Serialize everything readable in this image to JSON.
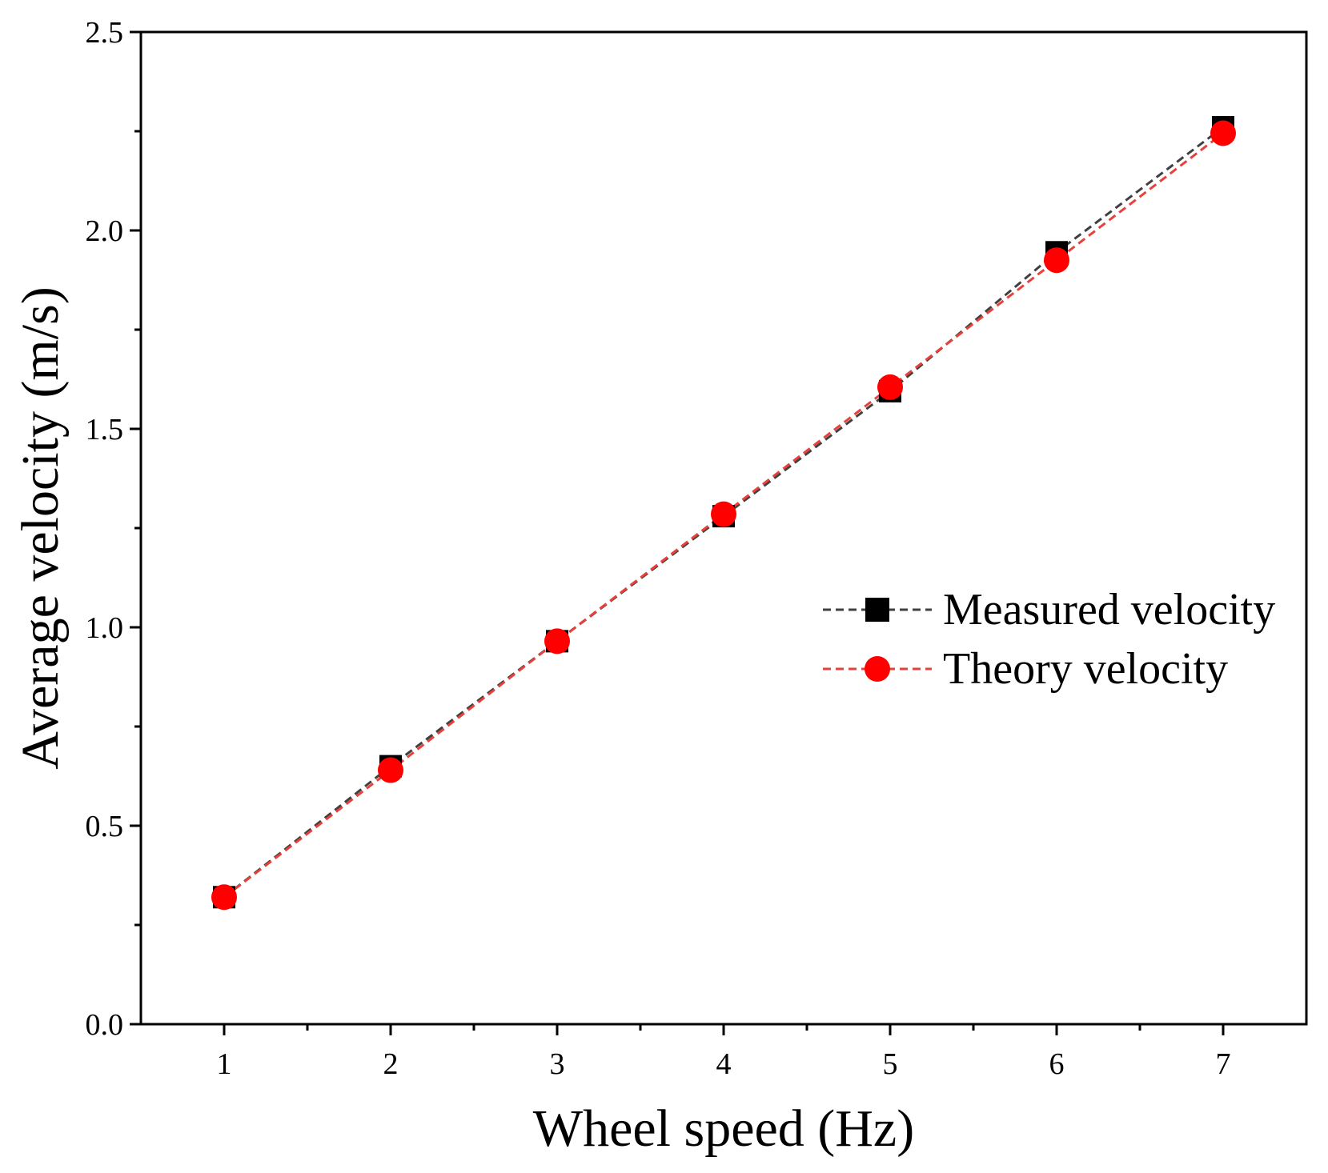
{
  "chart_data": {
    "type": "line",
    "xlabel": "Wheel speed (Hz)",
    "ylabel": "Average velocity (m/s)",
    "xlim": [
      0.5,
      7.5
    ],
    "ylim": [
      0,
      2.5
    ],
    "x_ticks": [
      1,
      2,
      3,
      4,
      5,
      6,
      7
    ],
    "x_tick_labels": [
      "1",
      "2",
      "3",
      "4",
      "5",
      "6",
      "7"
    ],
    "y_ticks": [
      0,
      0.5,
      1.0,
      1.5,
      2.0,
      2.5
    ],
    "y_tick_labels": [
      "0.0",
      "0.5",
      "1.0",
      "1.5",
      "2.0",
      "2.5"
    ],
    "grid": false,
    "legend_position": "right-middle",
    "x": [
      1,
      2,
      3,
      4,
      5,
      6,
      7
    ],
    "series": [
      {
        "name": "Measured velocity",
        "values": [
          0.32,
          0.65,
          0.965,
          1.28,
          1.595,
          1.945,
          2.26
        ],
        "color": "#404040",
        "marker": "square",
        "marker_color": "#000000",
        "line_style": "dashed"
      },
      {
        "name": "Theory velocity",
        "values": [
          0.32,
          0.64,
          0.965,
          1.285,
          1.605,
          1.925,
          2.245
        ],
        "color": "#e8413c",
        "marker": "circle",
        "marker_color": "#ff0000",
        "line_style": "dashed"
      }
    ]
  }
}
